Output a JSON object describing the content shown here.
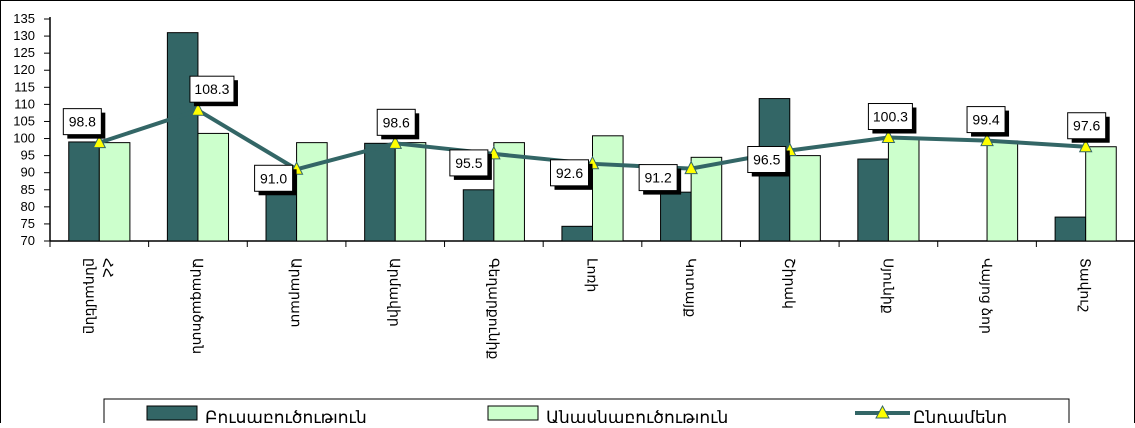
{
  "chart_data": {
    "type": "bar",
    "title": "",
    "xlabel": "",
    "ylabel": "",
    "ylim": [
      70,
      135
    ],
    "yticks": [
      70,
      75,
      80,
      85,
      90,
      95,
      100,
      105,
      110,
      115,
      120,
      125,
      130,
      135
    ],
    "categories": [
      [
        "ՀՀ",
        "ընդամենը"
      ],
      [
        "Արագածոտն"
      ],
      [
        "Արարատ"
      ],
      [
        "Արմավիր"
      ],
      [
        "Գեղարքունիք"
      ],
      [
        "Լոռի"
      ],
      [
        "Կոտայք"
      ],
      [
        "Շիրակ"
      ],
      [
        "Սյունիք"
      ],
      [
        "Վայոց ձոր"
      ],
      [
        "Տավուշ"
      ]
    ],
    "series": [
      {
        "name": "Բուսաբուծություն",
        "type": "bar",
        "color": "#336666",
        "values": [
          99.0,
          131.0,
          85.5,
          98.6,
          85.0,
          74.3,
          84.3,
          111.7,
          94.0,
          null,
          77.0
        ]
      },
      {
        "name": "Անասնաբուծություն",
        "type": "bar",
        "color": "#ccffcc",
        "values": [
          98.8,
          101.5,
          98.8,
          98.8,
          98.8,
          100.8,
          94.5,
          95.0,
          100.3,
          99.3,
          97.6
        ]
      },
      {
        "name": "Ընդամենը",
        "type": "line",
        "color": "#336666",
        "marker_color": "#ffff00",
        "values": [
          98.8,
          108.3,
          91.0,
          98.6,
          95.5,
          92.6,
          91.2,
          96.5,
          100.3,
          99.4,
          97.6
        ],
        "labels": [
          "98.8",
          "108.3",
          "91.0",
          "98.6",
          "95.5",
          "92.6",
          "91.2",
          "96.5",
          "100.3",
          "99.4",
          "97.6"
        ]
      }
    ],
    "legend": "bottom",
    "grid": false
  }
}
